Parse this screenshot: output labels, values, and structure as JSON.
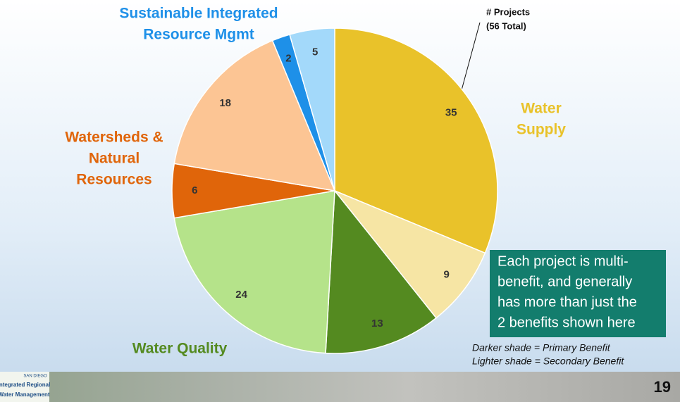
{
  "chart_data": {
    "type": "pie",
    "annotation": [
      "# Projects",
      "(56 Total)"
    ],
    "series": [
      {
        "name": [
          "Water",
          "Supply"
        ],
        "values": [
          35,
          9
        ],
        "colors": [
          "#e9c22a",
          "#f6e5a4"
        ]
      },
      {
        "name": [
          "Water Quality"
        ],
        "values": [
          13,
          24
        ],
        "colors": [
          "#548a20",
          "#b5e38a"
        ]
      },
      {
        "name": [
          "Watersheds &",
          "Natural",
          "Resources"
        ],
        "values": [
          6,
          18
        ],
        "colors": [
          "#e0650a",
          "#fcc594"
        ]
      },
      {
        "name": [
          "Sustainable Integrated",
          "Resource Mgmt"
        ],
        "values": [
          2,
          5
        ],
        "colors": [
          "#1e90e8",
          "#a3d9fa"
        ]
      }
    ]
  },
  "callout": [
    "Each project is multi-",
    "benefit, and generally",
    "has more than just the",
    "2 benefits shown here"
  ],
  "note": [
    "Darker shade = Primary Benefit",
    "Lighter shade = Secondary Benefit"
  ],
  "footer": {
    "logo": [
      "SAN DIEGO",
      "Integrated Regional",
      "Water Management"
    ],
    "page": "19"
  }
}
